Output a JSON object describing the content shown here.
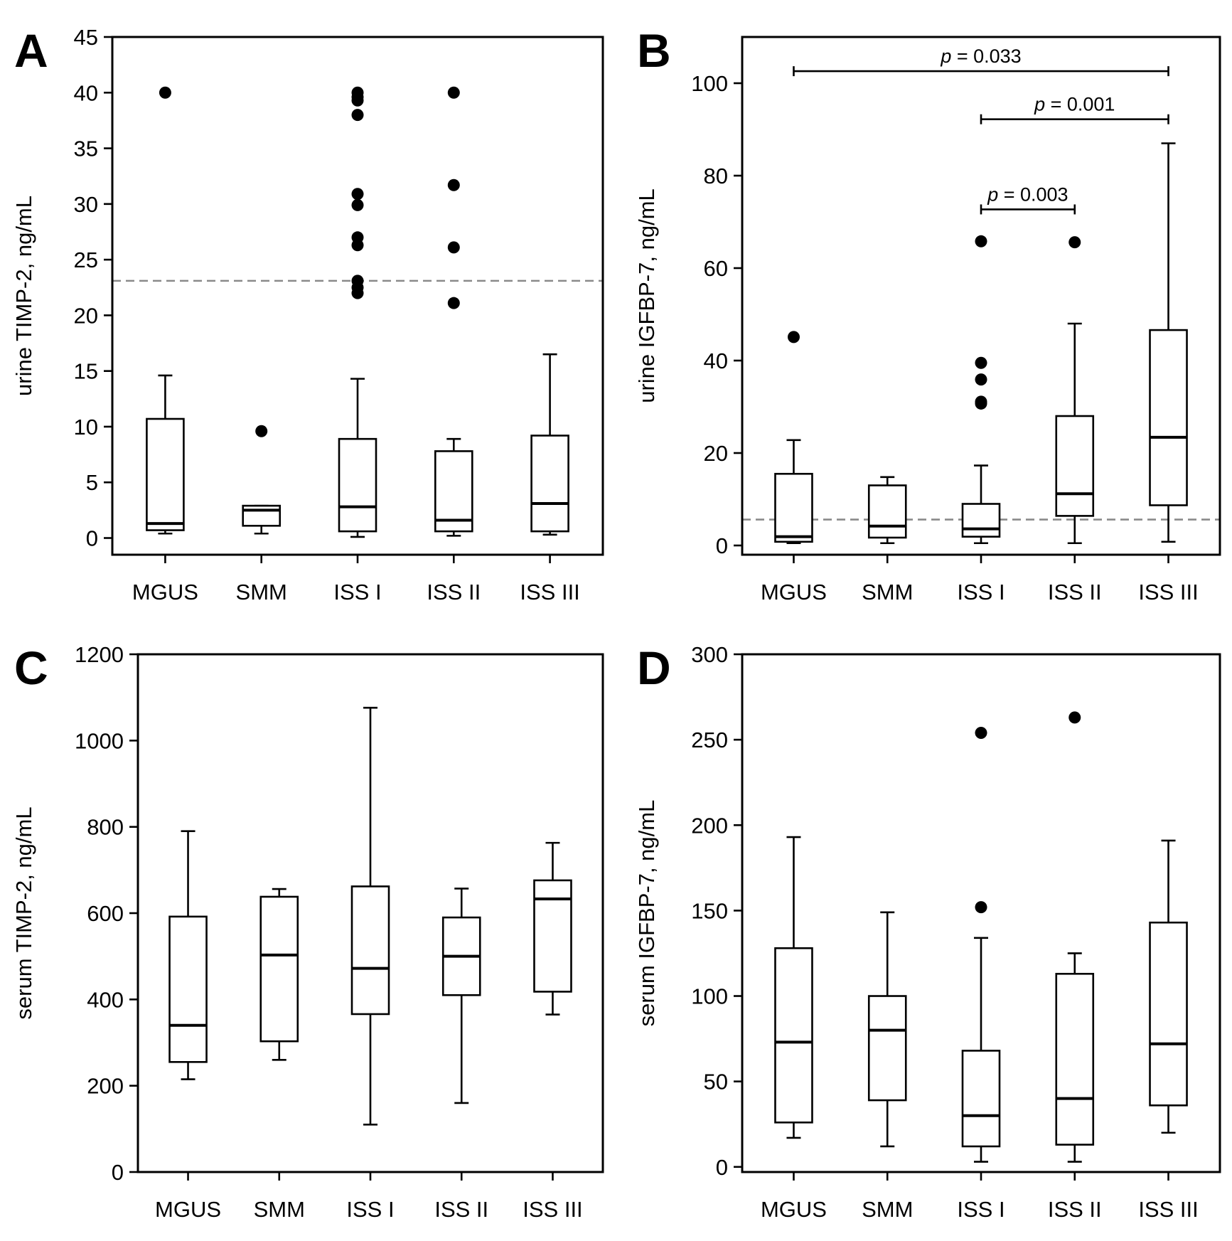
{
  "chart_data": [
    {
      "type": "box",
      "panel": "A",
      "ylabel": "urine TIMP-2, ng/mL",
      "ylim": [
        -1.5,
        45
      ],
      "yticks": [
        0,
        5,
        10,
        15,
        20,
        25,
        30,
        35,
        40,
        45
      ],
      "categories": [
        "MGUS",
        "SMM",
        "ISS I",
        "ISS II",
        "ISS III"
      ],
      "reference_line": 23.1,
      "boxes": [
        {
          "whisker_low": 0.4,
          "q1": 0.7,
          "median": 1.3,
          "q3": 10.7,
          "whisker_high": 14.6,
          "outliers": [
            40
          ]
        },
        {
          "whisker_low": 0.4,
          "q1": 1.1,
          "median": 2.5,
          "q3": 2.9,
          "whisker_high": 2.9,
          "outliers": [
            9.6
          ]
        },
        {
          "whisker_low": 0.1,
          "q1": 0.6,
          "median": 2.8,
          "q3": 8.9,
          "whisker_high": 14.3,
          "outliers": [
            40.0,
            39.6,
            39.3,
            38.0,
            30.9,
            29.9,
            27.0,
            26.3,
            23.1,
            22.5,
            22.0
          ]
        },
        {
          "whisker_low": 0.2,
          "q1": 0.6,
          "median": 1.6,
          "q3": 7.8,
          "whisker_high": 8.9,
          "outliers": [
            40.0,
            31.7,
            26.1,
            21.1
          ]
        },
        {
          "whisker_low": 0.3,
          "q1": 0.6,
          "median": 3.1,
          "q3": 9.2,
          "whisker_high": 16.5,
          "outliers": []
        }
      ],
      "comparisons": []
    },
    {
      "type": "box",
      "panel": "B",
      "ylabel": "urine IGFBP-7, ng/mL",
      "ylim": [
        -2,
        110
      ],
      "yticks": [
        0,
        20,
        40,
        60,
        80,
        100
      ],
      "categories": [
        "MGUS",
        "SMM",
        "ISS I",
        "ISS II",
        "ISS III"
      ],
      "reference_line": 5.6,
      "boxes": [
        {
          "whisker_low": 0.5,
          "q1": 0.8,
          "median": 1.9,
          "q3": 15.5,
          "whisker_high": 22.8,
          "outliers": [
            45.1
          ]
        },
        {
          "whisker_low": 0.5,
          "q1": 1.7,
          "median": 4.2,
          "q3": 13.0,
          "whisker_high": 14.8,
          "outliers": []
        },
        {
          "whisker_low": 0.5,
          "q1": 1.9,
          "median": 3.6,
          "q3": 9.0,
          "whisker_high": 17.3,
          "outliers": [
            65.8,
            39.5,
            35.9,
            31.1,
            30.7
          ]
        },
        {
          "whisker_low": 0.5,
          "q1": 6.4,
          "median": 11.2,
          "q3": 28.0,
          "whisker_high": 48.0,
          "outliers": [
            65.6
          ]
        },
        {
          "whisker_low": 0.8,
          "q1": 8.7,
          "median": 23.4,
          "q3": 46.6,
          "whisker_high": 87.0,
          "outliers": []
        }
      ],
      "comparisons": [
        {
          "from": "MGUS",
          "to": "ISS III",
          "y": 102.6,
          "label_p": "p",
          "label_value": "= 0.033"
        },
        {
          "from": "ISS I",
          "to": "ISS III",
          "y": 92.2,
          "label_p": "p",
          "label_value": "= 0.001"
        },
        {
          "from": "ISS I",
          "to": "ISS II",
          "y": 72.7,
          "label_p": "p",
          "label_value": "= 0.003"
        }
      ]
    },
    {
      "type": "box",
      "panel": "C",
      "ylabel": "serum TIMP-2, ng/mL",
      "ylim": [
        0,
        1200
      ],
      "yticks": [
        0,
        200,
        400,
        600,
        800,
        1000,
        1200
      ],
      "categories": [
        "MGUS",
        "SMM",
        "ISS I",
        "ISS II",
        "ISS III"
      ],
      "reference_line": null,
      "boxes": [
        {
          "whisker_low": 215,
          "q1": 255,
          "median": 340,
          "q3": 592,
          "whisker_high": 790,
          "outliers": []
        },
        {
          "whisker_low": 260,
          "q1": 303,
          "median": 503,
          "q3": 638,
          "whisker_high": 656,
          "outliers": []
        },
        {
          "whisker_low": 110,
          "q1": 366,
          "median": 472,
          "q3": 662,
          "whisker_high": 1076,
          "outliers": []
        },
        {
          "whisker_low": 160,
          "q1": 410,
          "median": 500,
          "q3": 590,
          "whisker_high": 657,
          "outliers": []
        },
        {
          "whisker_low": 365,
          "q1": 418,
          "median": 633,
          "q3": 676,
          "whisker_high": 763,
          "outliers": []
        }
      ],
      "comparisons": []
    },
    {
      "type": "box",
      "panel": "D",
      "ylabel": "serum IGFBP-7, ng/mL",
      "ylim": [
        -3,
        300
      ],
      "yticks": [
        0,
        50,
        100,
        150,
        200,
        250,
        300
      ],
      "categories": [
        "MGUS",
        "SMM",
        "ISS I",
        "ISS II",
        "ISS III"
      ],
      "reference_line": null,
      "boxes": [
        {
          "whisker_low": 17,
          "q1": 26,
          "median": 73,
          "q3": 128,
          "whisker_high": 193,
          "outliers": []
        },
        {
          "whisker_low": 12,
          "q1": 39,
          "median": 80,
          "q3": 100,
          "whisker_high": 149,
          "outliers": []
        },
        {
          "whisker_low": 3,
          "q1": 12,
          "median": 30,
          "q3": 68,
          "whisker_high": 134,
          "outliers": [
            254,
            152
          ]
        },
        {
          "whisker_low": 3,
          "q1": 13,
          "median": 40,
          "q3": 113,
          "whisker_high": 125,
          "outliers": [
            263
          ]
        },
        {
          "whisker_low": 20,
          "q1": 36,
          "median": 72,
          "q3": 143,
          "whisker_high": 191,
          "outliers": []
        }
      ],
      "comparisons": []
    }
  ]
}
